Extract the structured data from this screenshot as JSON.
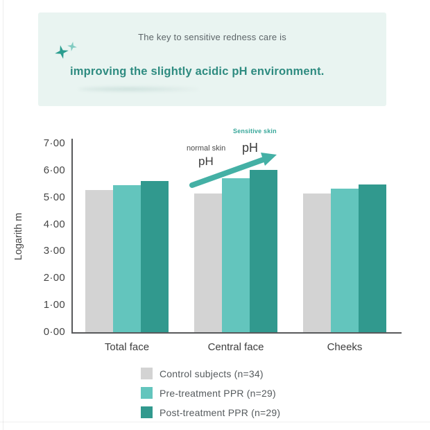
{
  "banner": {
    "line1": "The key to sensitive redness care is",
    "line2": "improving the slightly acidic pH environment.",
    "bg_color": "#e9f4f1",
    "accent_color": "#2e8b80"
  },
  "chart_data": {
    "type": "bar",
    "title": "",
    "xlabel": "",
    "ylabel": "Logarith m",
    "ylim": [
      0,
      7
    ],
    "yticks": [
      "0·00",
      "1·00",
      "2·00",
      "3·00",
      "4·00",
      "5·00",
      "6·00",
      "7·00"
    ],
    "categories": [
      "Total face",
      "Central face",
      "Cheeks"
    ],
    "series": [
      {
        "name": "Control subjects (n=34)",
        "color": "#d3d3d3",
        "values": [
          5.27,
          5.15,
          5.15
        ]
      },
      {
        "name": "Pre-treatment PPR (n=29)",
        "color": "#63c5bd",
        "values": [
          5.45,
          5.72,
          5.32
        ]
      },
      {
        "name": "Post-treatment PPR (n=29)",
        "color": "#31998e",
        "values": [
          5.62,
          6.02,
          5.49
        ]
      }
    ],
    "grid": false,
    "legend_position": "bottom",
    "annotations": {
      "sensitive_skin_label": "Sensitive skin",
      "normal_skin_label": "normal skin",
      "normal_ph_label": "pH",
      "sensitive_ph_label": "pH",
      "arrow_color": "#44b0a5"
    }
  }
}
